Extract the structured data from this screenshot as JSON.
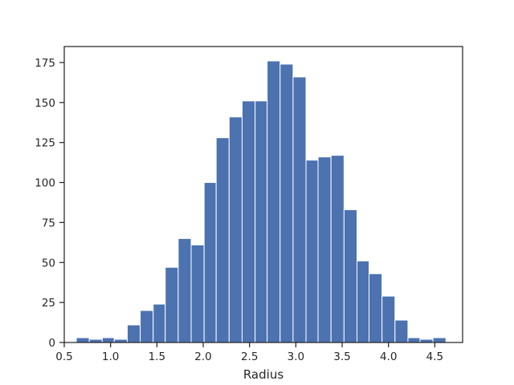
{
  "chart_data": {
    "type": "bar",
    "subtype": "histogram",
    "title": "",
    "xlabel": "Radius",
    "ylabel": "",
    "xlim": [
      0.5,
      4.8
    ],
    "ylim": [
      0,
      185
    ],
    "grid": false,
    "bar_color": "#4c72b0",
    "bar_edge_color": "#ffffff",
    "axis_color": "#262626",
    "x_ticks": [
      0.5,
      1.0,
      1.5,
      2.0,
      2.5,
      3.0,
      3.5,
      4.0,
      4.5
    ],
    "x_tick_labels": [
      "0.5",
      "1.0",
      "1.5",
      "2.0",
      "2.5",
      "3.0",
      "3.5",
      "4.0",
      "4.5"
    ],
    "y_ticks": [
      0,
      25,
      50,
      75,
      100,
      125,
      150,
      175
    ],
    "y_tick_labels": [
      "0",
      "25",
      "50",
      "75",
      "100",
      "125",
      "150",
      "175"
    ],
    "bins": [
      {
        "start": 0.63,
        "end": 0.77,
        "count": 3
      },
      {
        "start": 0.77,
        "end": 0.91,
        "count": 2
      },
      {
        "start": 0.91,
        "end": 1.04,
        "count": 3
      },
      {
        "start": 1.04,
        "end": 1.18,
        "count": 2
      },
      {
        "start": 1.18,
        "end": 1.32,
        "count": 11
      },
      {
        "start": 1.32,
        "end": 1.46,
        "count": 20
      },
      {
        "start": 1.46,
        "end": 1.59,
        "count": 24
      },
      {
        "start": 1.59,
        "end": 1.73,
        "count": 47
      },
      {
        "start": 1.73,
        "end": 1.87,
        "count": 65
      },
      {
        "start": 1.87,
        "end": 2.01,
        "count": 61
      },
      {
        "start": 2.01,
        "end": 2.14,
        "count": 100
      },
      {
        "start": 2.14,
        "end": 2.28,
        "count": 128
      },
      {
        "start": 2.28,
        "end": 2.42,
        "count": 141
      },
      {
        "start": 2.42,
        "end": 2.56,
        "count": 151
      },
      {
        "start": 2.56,
        "end": 2.69,
        "count": 151
      },
      {
        "start": 2.69,
        "end": 2.83,
        "count": 176
      },
      {
        "start": 2.83,
        "end": 2.97,
        "count": 174
      },
      {
        "start": 2.97,
        "end": 3.11,
        "count": 166
      },
      {
        "start": 3.11,
        "end": 3.24,
        "count": 114
      },
      {
        "start": 3.24,
        "end": 3.38,
        "count": 116
      },
      {
        "start": 3.38,
        "end": 3.52,
        "count": 117
      },
      {
        "start": 3.52,
        "end": 3.66,
        "count": 83
      },
      {
        "start": 3.66,
        "end": 3.79,
        "count": 51
      },
      {
        "start": 3.79,
        "end": 3.93,
        "count": 43
      },
      {
        "start": 3.93,
        "end": 4.07,
        "count": 29
      },
      {
        "start": 4.07,
        "end": 4.21,
        "count": 14
      },
      {
        "start": 4.21,
        "end": 4.34,
        "count": 3
      },
      {
        "start": 4.34,
        "end": 4.48,
        "count": 2
      },
      {
        "start": 4.48,
        "end": 4.62,
        "count": 3
      }
    ]
  }
}
